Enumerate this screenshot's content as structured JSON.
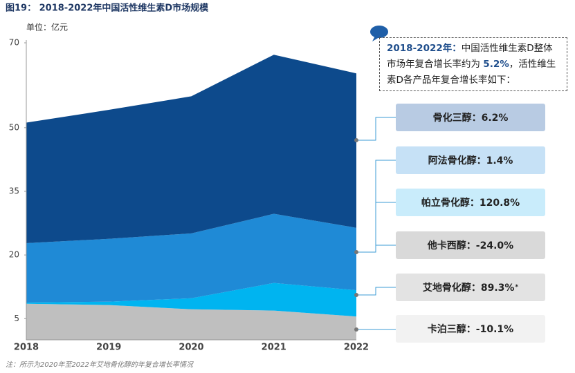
{
  "chart_data": {
    "type": "stacked_area",
    "title": "图19： 2018-2022年中国活性维生素D市场规模",
    "unit": "单位：亿元",
    "categories": [
      "2018",
      "2019",
      "2020",
      "2021",
      "2022"
    ],
    "series": [
      {
        "color": "#bfbfbf",
        "values": [
          8.5,
          8.2,
          7.2,
          6.9,
          5.5
        ]
      },
      {
        "color": "#00b4f0",
        "values": [
          0.3,
          0.8,
          2.6,
          6.5,
          6.2
        ]
      },
      {
        "color": "#1f8ad6",
        "values": [
          14.0,
          14.8,
          15.3,
          16.3,
          14.7
        ]
      },
      {
        "color": "#0d4a8c",
        "values": [
          28.4,
          30.4,
          32.3,
          37.5,
          36.4
        ]
      }
    ],
    "ylim": [
      0,
      70
    ],
    "yticks": [
      5,
      20,
      35,
      50,
      70
    ],
    "callout": {
      "lead": "2018-2022年：",
      "text1": "中国活性维生素D整体市场年复合增长率约为 ",
      "rate": "5.2%",
      "text2": "，活性维生素D各产品年复合增长率如下："
    },
    "product_labels": [
      {
        "label": "骨化三醇：6.2%",
        "color": "#b8cbe3"
      },
      {
        "label": "阿法骨化醇：1.4%",
        "color": "#c6e1f6"
      },
      {
        "label": "帕立骨化醇：120.8%",
        "color": "#c9ecfb"
      },
      {
        "label": "他卡西醇：-24.0%",
        "color": "#d9d9d9"
      },
      {
        "label": "艾地骨化醇：89.3%",
        "sup": "*",
        "color": "#e3e3e3"
      },
      {
        "label": "卡泊三醇：-10.1%",
        "color": "#f2f2f2"
      }
    ],
    "footnote": "注：所示为2020年至2022年艾地骨化醇的年复合增长率情况"
  }
}
